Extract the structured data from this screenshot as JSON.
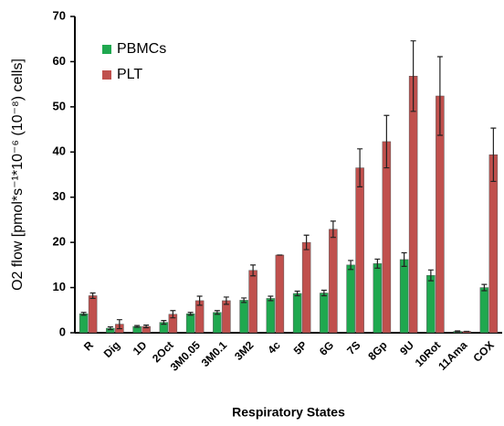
{
  "chart_data": {
    "type": "bar",
    "y_label": "O2 flow [pmol*s⁻¹*10⁻⁶ (10⁻⁸) cells]",
    "x_label": "Respiratory States",
    "categories": [
      "R",
      "Dig",
      "1D",
      "2Oct",
      "3M0.05",
      "3M0.1",
      "3M2",
      "4c",
      "5P",
      "6G",
      "7S",
      "8Gp",
      "9U",
      "10Rot",
      "11Ama",
      "COX"
    ],
    "series": [
      {
        "name": "PBMCs",
        "color": "#1fa84f",
        "values": [
          4.2,
          1.0,
          1.4,
          2.3,
          4.2,
          4.5,
          7.2,
          7.6,
          8.7,
          8.8,
          15.0,
          15.3,
          16.2,
          12.7,
          0.3,
          10.0
        ],
        "errors": [
          0.3,
          0.3,
          0.2,
          0.4,
          0.3,
          0.4,
          0.5,
          0.5,
          0.5,
          0.6,
          1.0,
          1.0,
          1.5,
          1.2,
          0.1,
          0.7
        ]
      },
      {
        "name": "PLT",
        "color": "#c0504d",
        "values": [
          8.2,
          1.9,
          1.4,
          4.1,
          7.1,
          7.1,
          13.8,
          17.2,
          20.0,
          22.9,
          36.5,
          42.3,
          56.8,
          52.4,
          0.3,
          39.4
        ],
        "errors": [
          0.6,
          1.0,
          0.3,
          0.8,
          1.0,
          0.8,
          1.2,
          0,
          1.6,
          1.8,
          4.2,
          5.8,
          7.8,
          8.7,
          0,
          5.9
        ]
      }
    ],
    "ylim": [
      0,
      70
    ],
    "yticks": [
      0,
      10,
      20,
      30,
      40,
      50,
      60,
      70
    ],
    "legend": "upper left"
  }
}
